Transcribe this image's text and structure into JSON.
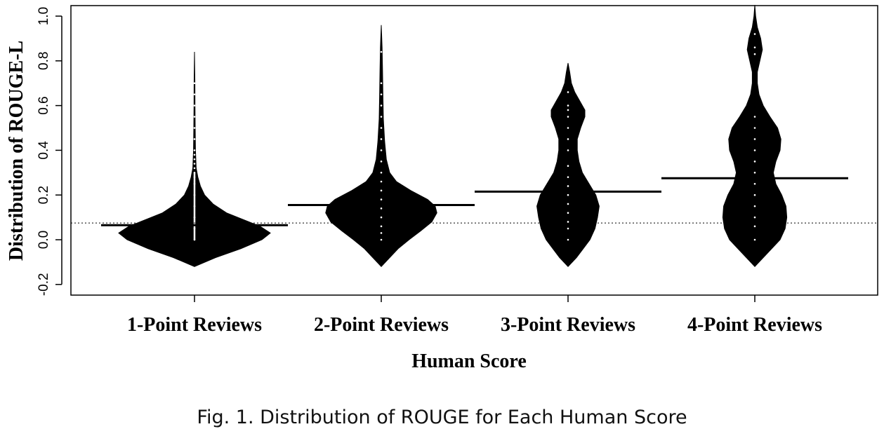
{
  "caption": "Fig. 1.  Distribution of ROUGE for Each Human Score",
  "chart_data": {
    "type": "violin",
    "xlabel": "Human Score",
    "ylabel": "Distribution of  ROUGE-L",
    "ylim": [
      -0.2,
      1.0
    ],
    "yticks": [
      -0.2,
      0.0,
      0.2,
      0.4,
      0.6,
      0.8,
      1.0
    ],
    "ytick_labels": [
      "-0.2",
      "0.0",
      "0.2",
      "0.4",
      "0.6",
      "0.8",
      "1.0"
    ],
    "categories": [
      "1-Point Reviews",
      "2-Point Reviews",
      "3-Point Reviews",
      "4-Point Reviews"
    ],
    "reference_line": 0.075,
    "means": [
      0.065,
      0.155,
      0.215,
      0.275
    ],
    "series": [
      {
        "range": [
          -0.12,
          0.84
        ],
        "width_profile": [
          [
            -0.12,
            0
          ],
          [
            -0.08,
            0.25
          ],
          [
            -0.04,
            0.55
          ],
          [
            0.0,
            0.8
          ],
          [
            0.03,
            0.9
          ],
          [
            0.06,
            0.78
          ],
          [
            0.09,
            0.58
          ],
          [
            0.12,
            0.38
          ],
          [
            0.16,
            0.22
          ],
          [
            0.2,
            0.12
          ],
          [
            0.24,
            0.07
          ],
          [
            0.28,
            0.04
          ],
          [
            0.32,
            0.02
          ],
          [
            0.4,
            0.012
          ],
          [
            0.5,
            0.008
          ],
          [
            0.6,
            0.006
          ],
          [
            0.7,
            0.005
          ],
          [
            0.84,
            0
          ]
        ],
        "points": [
          0.0,
          0.05,
          0.1,
          0.15,
          0.2,
          0.25,
          0.28,
          0.3,
          0.32,
          0.34,
          0.36,
          0.38,
          0.4,
          0.45,
          0.5,
          0.55,
          0.6,
          0.65,
          0.7
        ]
      },
      {
        "range": [
          -0.12,
          0.96
        ],
        "width_profile": [
          [
            -0.12,
            0
          ],
          [
            -0.08,
            0.1
          ],
          [
            -0.04,
            0.2
          ],
          [
            0.0,
            0.33
          ],
          [
            0.04,
            0.47
          ],
          [
            0.08,
            0.6
          ],
          [
            0.12,
            0.66
          ],
          [
            0.15,
            0.64
          ],
          [
            0.18,
            0.55
          ],
          [
            0.22,
            0.35
          ],
          [
            0.26,
            0.18
          ],
          [
            0.3,
            0.1
          ],
          [
            0.36,
            0.06
          ],
          [
            0.44,
            0.04
          ],
          [
            0.54,
            0.025
          ],
          [
            0.64,
            0.02
          ],
          [
            0.76,
            0.015
          ],
          [
            0.86,
            0.01
          ],
          [
            0.96,
            0
          ]
        ],
        "points": [
          0.0,
          0.03,
          0.06,
          0.1,
          0.14,
          0.18,
          0.22,
          0.26,
          0.3,
          0.35,
          0.4,
          0.45,
          0.5,
          0.55,
          0.6,
          0.65,
          0.7,
          0.84
        ]
      },
      {
        "range": [
          -0.12,
          0.79
        ],
        "width_profile": [
          [
            -0.12,
            0
          ],
          [
            -0.08,
            0.1
          ],
          [
            -0.04,
            0.18
          ],
          [
            0.0,
            0.26
          ],
          [
            0.05,
            0.32
          ],
          [
            0.1,
            0.35
          ],
          [
            0.15,
            0.37
          ],
          [
            0.2,
            0.33
          ],
          [
            0.25,
            0.25
          ],
          [
            0.3,
            0.17
          ],
          [
            0.35,
            0.13
          ],
          [
            0.4,
            0.11
          ],
          [
            0.45,
            0.11
          ],
          [
            0.5,
            0.15
          ],
          [
            0.55,
            0.2
          ],
          [
            0.58,
            0.2
          ],
          [
            0.62,
            0.14
          ],
          [
            0.66,
            0.08
          ],
          [
            0.7,
            0.04
          ],
          [
            0.75,
            0.02
          ],
          [
            0.79,
            0
          ]
        ],
        "points": [
          0.0,
          0.05,
          0.08,
          0.12,
          0.16,
          0.2,
          0.24,
          0.28,
          0.33,
          0.4,
          0.45,
          0.5,
          0.55,
          0.58,
          0.6,
          0.66
        ]
      },
      {
        "range": [
          -0.12,
          1.05
        ],
        "width_profile": [
          [
            -0.12,
            0
          ],
          [
            -0.08,
            0.1
          ],
          [
            -0.04,
            0.2
          ],
          [
            0.0,
            0.3
          ],
          [
            0.05,
            0.36
          ],
          [
            0.1,
            0.38
          ],
          [
            0.15,
            0.37
          ],
          [
            0.2,
            0.32
          ],
          [
            0.25,
            0.25
          ],
          [
            0.3,
            0.22
          ],
          [
            0.35,
            0.25
          ],
          [
            0.4,
            0.3
          ],
          [
            0.45,
            0.31
          ],
          [
            0.5,
            0.27
          ],
          [
            0.55,
            0.18
          ],
          [
            0.6,
            0.1
          ],
          [
            0.65,
            0.05
          ],
          [
            0.7,
            0.03
          ],
          [
            0.75,
            0.03
          ],
          [
            0.8,
            0.06
          ],
          [
            0.85,
            0.09
          ],
          [
            0.9,
            0.07
          ],
          [
            0.95,
            0.03
          ],
          [
            1.0,
            0.01
          ],
          [
            1.05,
            0
          ]
        ],
        "points": [
          0.0,
          0.06,
          0.1,
          0.15,
          0.2,
          0.25,
          0.3,
          0.35,
          0.4,
          0.45,
          0.5,
          0.55,
          0.83,
          0.86,
          0.92
        ]
      }
    ]
  }
}
